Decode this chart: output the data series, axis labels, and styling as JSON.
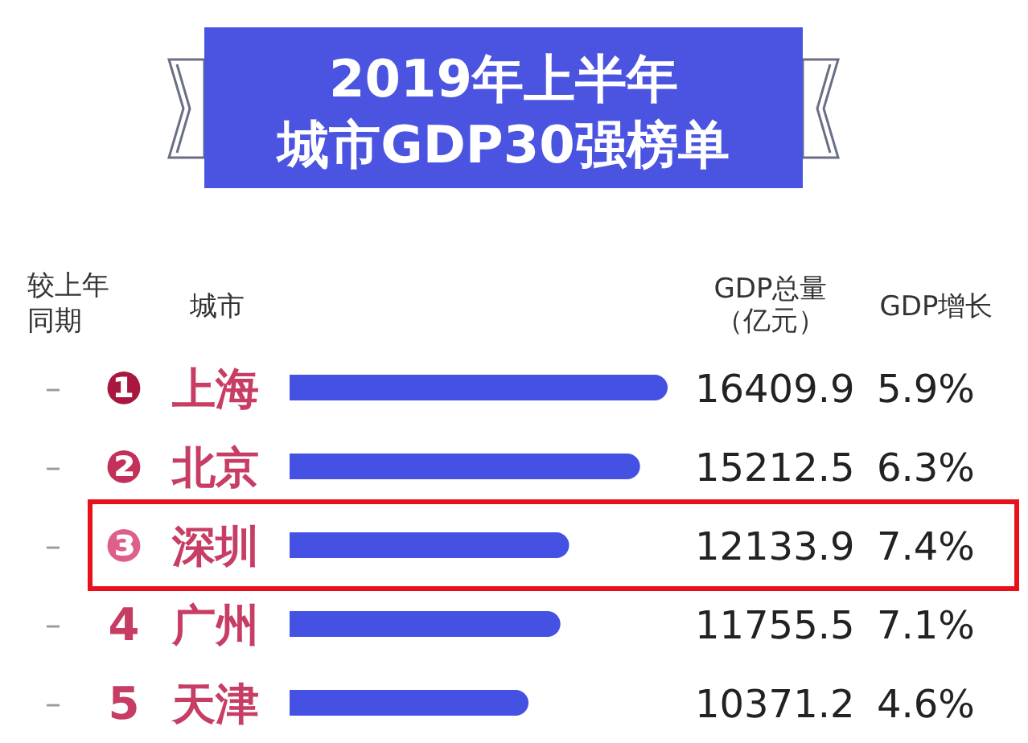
{
  "chart_data": {
    "type": "bar",
    "orientation": "horizontal",
    "title": "2019年上半年",
    "subtitle": "城市GDP30强榜单",
    "ylabel": "城市",
    "xlabel": "GDP总量（亿元）",
    "categories": [
      "上海",
      "北京",
      "深圳",
      "广州",
      "天津"
    ],
    "values": [
      16409.9,
      15212.5,
      12133.9,
      11755.5,
      10371.2
    ],
    "color": "#4551e3",
    "data_labels": true,
    "annotations": [
      "较上年同期",
      "GDP增长",
      "–",
      "❶",
      "5.9%",
      "–",
      "❷",
      "6.3%",
      "–",
      "❸",
      "7.4%",
      "–",
      "4",
      "7.1%",
      "–",
      "5",
      "4.6%"
    ]
  }
}
